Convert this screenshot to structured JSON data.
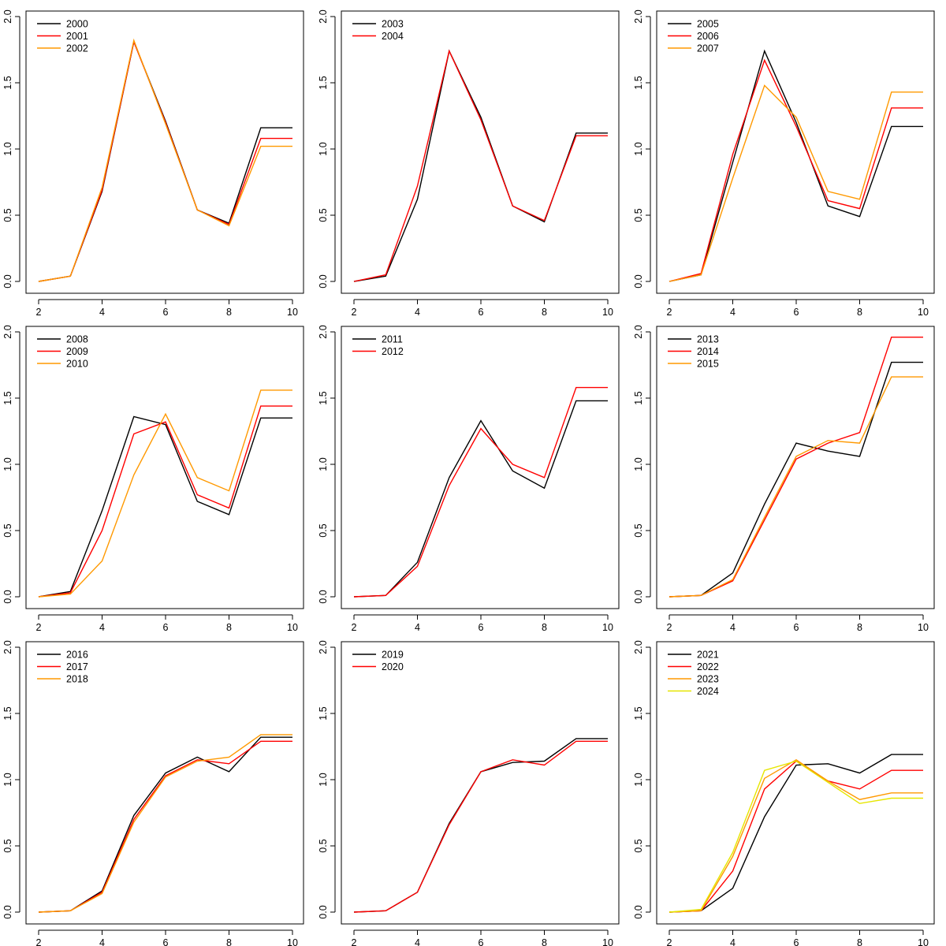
{
  "chart_data": [
    {
      "type": "line",
      "x": [
        2,
        3,
        4,
        5,
        6,
        7,
        8,
        9,
        10
      ],
      "xlim": [
        2,
        10
      ],
      "ylim": [
        0,
        2
      ],
      "xticks": [
        "2",
        "4",
        "6",
        "8",
        "10"
      ],
      "yticks": [
        "0.0",
        "0.5",
        "1.0",
        "1.5",
        "2.0"
      ],
      "legend_position": "top-left",
      "step_last_segment": true,
      "grid": false,
      "series": [
        {
          "name": "2000",
          "color": "#000000",
          "values": [
            0,
            0.04,
            0.68,
            1.81,
            1.21,
            0.54,
            0.44,
            1.16,
            1.16
          ]
        },
        {
          "name": "2001",
          "color": "#ff0000",
          "values": [
            0,
            0.04,
            0.69,
            1.81,
            1.2,
            0.54,
            0.43,
            1.08,
            1.08
          ]
        },
        {
          "name": "2002",
          "color": "#ff9900",
          "values": [
            0,
            0.04,
            0.71,
            1.82,
            1.19,
            0.54,
            0.42,
            1.02,
            1.02
          ]
        }
      ]
    },
    {
      "type": "line",
      "x": [
        2,
        3,
        4,
        5,
        6,
        7,
        8,
        9,
        10
      ],
      "xlim": [
        2,
        10
      ],
      "ylim": [
        0,
        2
      ],
      "xticks": [
        "2",
        "4",
        "6",
        "8",
        "10"
      ],
      "yticks": [
        "0.0",
        "0.5",
        "1.0",
        "1.5",
        "2.0"
      ],
      "legend_position": "top-left",
      "step_last_segment": true,
      "grid": false,
      "series": [
        {
          "name": "2003",
          "color": "#000000",
          "values": [
            0,
            0.04,
            0.62,
            1.74,
            1.24,
            0.57,
            0.45,
            1.12,
            1.12
          ]
        },
        {
          "name": "2004",
          "color": "#ff0000",
          "values": [
            0,
            0.05,
            0.72,
            1.74,
            1.22,
            0.57,
            0.46,
            1.1,
            1.1
          ]
        }
      ]
    },
    {
      "type": "line",
      "x": [
        2,
        3,
        4,
        5,
        6,
        7,
        8,
        9,
        10
      ],
      "xlim": [
        2,
        10
      ],
      "ylim": [
        0,
        2
      ],
      "xticks": [
        "2",
        "4",
        "6",
        "8",
        "10"
      ],
      "yticks": [
        "0.0",
        "0.5",
        "1.0",
        "1.5",
        "2.0"
      ],
      "legend_position": "top-left",
      "step_last_segment": true,
      "grid": false,
      "series": [
        {
          "name": "2005",
          "color": "#000000",
          "values": [
            0,
            0.05,
            0.9,
            1.74,
            1.2,
            0.57,
            0.49,
            1.17,
            1.17
          ]
        },
        {
          "name": "2006",
          "color": "#ff0000",
          "values": [
            0,
            0.06,
            0.96,
            1.67,
            1.17,
            0.61,
            0.55,
            1.31,
            1.31
          ]
        },
        {
          "name": "2007",
          "color": "#ff9900",
          "values": [
            0,
            0.05,
            0.78,
            1.48,
            1.24,
            0.68,
            0.62,
            1.43,
            1.43
          ]
        }
      ]
    },
    {
      "type": "line",
      "x": [
        2,
        3,
        4,
        5,
        6,
        7,
        8,
        9,
        10
      ],
      "xlim": [
        2,
        10
      ],
      "ylim": [
        0,
        2
      ],
      "xticks": [
        "2",
        "4",
        "6",
        "8",
        "10"
      ],
      "yticks": [
        "0.0",
        "0.5",
        "1.0",
        "1.5",
        "2.0"
      ],
      "legend_position": "top-left",
      "step_last_segment": true,
      "grid": false,
      "series": [
        {
          "name": "2008",
          "color": "#000000",
          "values": [
            0,
            0.04,
            0.65,
            1.36,
            1.3,
            0.72,
            0.62,
            1.35,
            1.35
          ]
        },
        {
          "name": "2009",
          "color": "#ff0000",
          "values": [
            0,
            0.03,
            0.5,
            1.23,
            1.32,
            0.77,
            0.67,
            1.44,
            1.44
          ]
        },
        {
          "name": "2010",
          "color": "#ff9900",
          "values": [
            0,
            0.02,
            0.27,
            0.92,
            1.38,
            0.9,
            0.8,
            1.56,
            1.56
          ]
        }
      ]
    },
    {
      "type": "line",
      "x": [
        2,
        3,
        4,
        5,
        6,
        7,
        8,
        9,
        10
      ],
      "xlim": [
        2,
        10
      ],
      "ylim": [
        0,
        2
      ],
      "xticks": [
        "2",
        "4",
        "6",
        "8",
        "10"
      ],
      "yticks": [
        "0.0",
        "0.5",
        "1.0",
        "1.5",
        "2.0"
      ],
      "legend_position": "top-left",
      "step_last_segment": true,
      "grid": false,
      "series": [
        {
          "name": "2011",
          "color": "#000000",
          "values": [
            0,
            0.01,
            0.26,
            0.9,
            1.33,
            0.95,
            0.82,
            1.48,
            1.48
          ]
        },
        {
          "name": "2012",
          "color": "#ff0000",
          "values": [
            0,
            0.01,
            0.23,
            0.84,
            1.27,
            1.0,
            0.9,
            1.58,
            1.58
          ]
        }
      ]
    },
    {
      "type": "line",
      "x": [
        2,
        3,
        4,
        5,
        6,
        7,
        8,
        9,
        10
      ],
      "xlim": [
        2,
        10
      ],
      "ylim": [
        0,
        2
      ],
      "xticks": [
        "2",
        "4",
        "6",
        "8",
        "10"
      ],
      "yticks": [
        "0.0",
        "0.5",
        "1.0",
        "1.5",
        "2.0"
      ],
      "legend_position": "top-left",
      "step_last_segment": true,
      "grid": false,
      "series": [
        {
          "name": "2013",
          "color": "#000000",
          "values": [
            0,
            0.01,
            0.18,
            0.7,
            1.16,
            1.1,
            1.06,
            1.77,
            1.77
          ]
        },
        {
          "name": "2014",
          "color": "#ff0000",
          "values": [
            0,
            0.01,
            0.12,
            0.58,
            1.04,
            1.16,
            1.24,
            1.96,
            1.96
          ]
        },
        {
          "name": "2015",
          "color": "#ff9900",
          "values": [
            0,
            0.01,
            0.13,
            0.6,
            1.06,
            1.18,
            1.16,
            1.66,
            1.66
          ]
        }
      ]
    },
    {
      "type": "line",
      "x": [
        2,
        3,
        4,
        5,
        6,
        7,
        8,
        9,
        10
      ],
      "xlim": [
        2,
        10
      ],
      "ylim": [
        0,
        2
      ],
      "xticks": [
        "2",
        "4",
        "6",
        "8",
        "10"
      ],
      "yticks": [
        "0.0",
        "0.5",
        "1.0",
        "1.5",
        "2.0"
      ],
      "legend_position": "top-left",
      "step_last_segment": true,
      "grid": false,
      "series": [
        {
          "name": "2016",
          "color": "#000000",
          "values": [
            0,
            0.01,
            0.16,
            0.73,
            1.05,
            1.17,
            1.06,
            1.32,
            1.32
          ]
        },
        {
          "name": "2017",
          "color": "#ff0000",
          "values": [
            0,
            0.01,
            0.15,
            0.7,
            1.03,
            1.15,
            1.12,
            1.29,
            1.29
          ]
        },
        {
          "name": "2018",
          "color": "#ff9900",
          "values": [
            0,
            0.01,
            0.14,
            0.68,
            1.02,
            1.14,
            1.17,
            1.34,
            1.34
          ]
        }
      ]
    },
    {
      "type": "line",
      "x": [
        2,
        3,
        4,
        5,
        6,
        7,
        8,
        9,
        10
      ],
      "xlim": [
        2,
        10
      ],
      "ylim": [
        0,
        2
      ],
      "xticks": [
        "2",
        "4",
        "6",
        "8",
        "10"
      ],
      "yticks": [
        "0.0",
        "0.5",
        "1.0",
        "1.5",
        "2.0"
      ],
      "legend_position": "top-left",
      "step_last_segment": true,
      "grid": false,
      "series": [
        {
          "name": "2019",
          "color": "#000000",
          "values": [
            0,
            0.01,
            0.15,
            0.67,
            1.06,
            1.13,
            1.14,
            1.31,
            1.31
          ]
        },
        {
          "name": "2020",
          "color": "#ff0000",
          "values": [
            0,
            0.01,
            0.15,
            0.66,
            1.06,
            1.15,
            1.11,
            1.29,
            1.29
          ]
        }
      ]
    },
    {
      "type": "line",
      "x": [
        2,
        3,
        4,
        5,
        6,
        7,
        8,
        9,
        10
      ],
      "xlim": [
        2,
        10
      ],
      "ylim": [
        0,
        2
      ],
      "xticks": [
        "2",
        "4",
        "6",
        "8",
        "10"
      ],
      "yticks": [
        "0.0",
        "0.5",
        "1.0",
        "1.5",
        "2.0"
      ],
      "legend_position": "top-left",
      "step_last_segment": true,
      "grid": false,
      "series": [
        {
          "name": "2021",
          "color": "#000000",
          "values": [
            0,
            0.01,
            0.18,
            0.72,
            1.11,
            1.12,
            1.05,
            1.19,
            1.19
          ]
        },
        {
          "name": "2022",
          "color": "#ff0000",
          "values": [
            0,
            0.01,
            0.31,
            0.93,
            1.14,
            0.99,
            0.93,
            1.07,
            1.07
          ]
        },
        {
          "name": "2023",
          "color": "#ff9900",
          "values": [
            0,
            0.01,
            0.42,
            1.01,
            1.15,
            0.99,
            0.85,
            0.9,
            0.9
          ]
        },
        {
          "name": "2024",
          "color": "#e6e600",
          "values": [
            0,
            0.02,
            0.45,
            1.07,
            1.14,
            0.98,
            0.82,
            0.86,
            0.86
          ]
        }
      ]
    }
  ]
}
